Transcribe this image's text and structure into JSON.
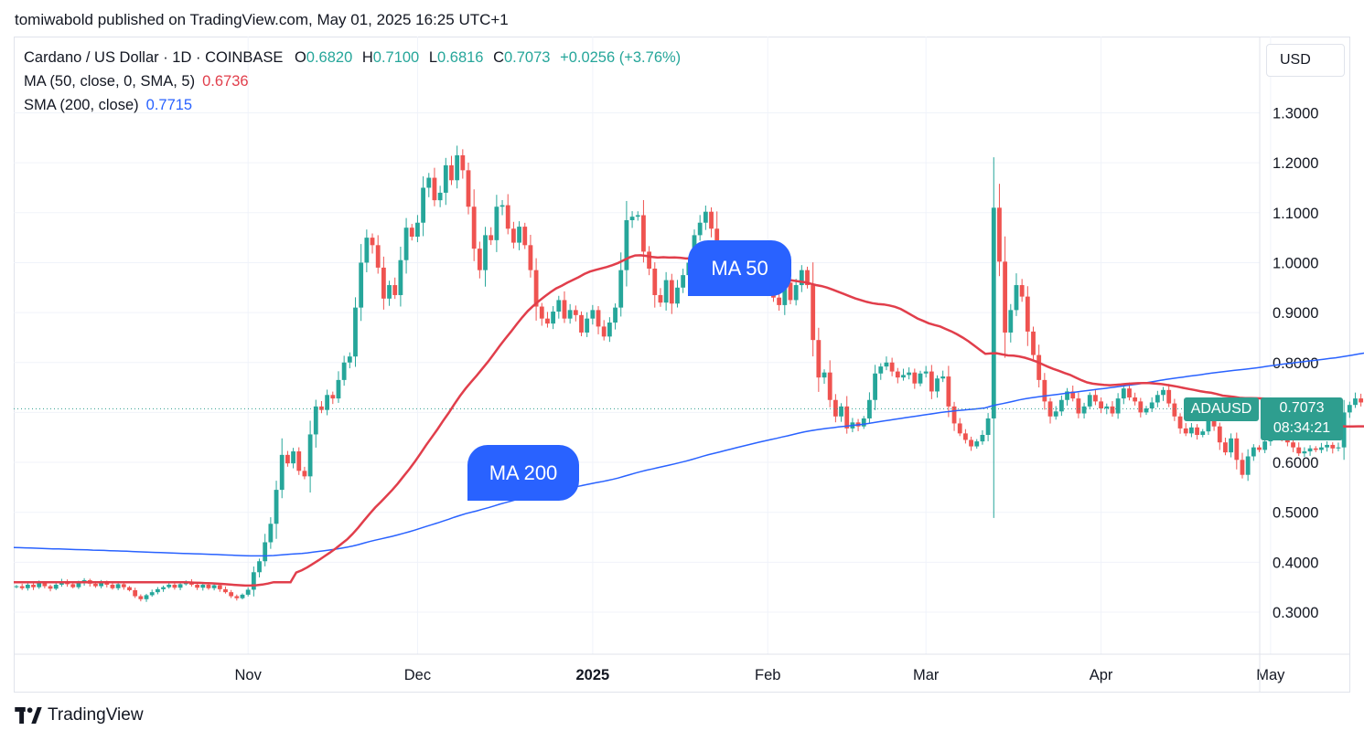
{
  "publish_line": "tomiwabold published on TradingView.com, May 01, 2025 16:25 UTC+1",
  "legend": {
    "symbol": "Cardano / US Dollar · 1D · COINBASE",
    "o_label": "O",
    "o_value": "0.6820",
    "h_label": "H",
    "h_value": "0.7100",
    "l_label": "L",
    "l_value": "0.6816",
    "c_label": "C",
    "c_value": "0.7073",
    "change": "+0.0256 (+3.76%)",
    "ma50_label": "MA (50, close, 0, SMA, 5)",
    "ma50_value": "0.6736",
    "sma200_label": "SMA (200, close)",
    "sma200_value": "0.7715"
  },
  "currency_button": "USD",
  "price_tag": {
    "symbol": "ADAUSD",
    "price": "0.7073",
    "countdown": "08:34:21"
  },
  "annotations": {
    "ma50": "MA 50",
    "ma200": "MA 200"
  },
  "footer": {
    "brand": "TradingView",
    "logo": "tradingview-logo-icon"
  },
  "colors": {
    "up": "#26a69a",
    "down": "#ef5350",
    "ma50": "#e13e4b",
    "sma200": "#2962ff",
    "callout": "#2962ff"
  },
  "chart_data": {
    "type": "candlestick",
    "interval": "1D",
    "y_ticks": [
      "0.3000",
      "0.4000",
      "0.5000",
      "0.6000",
      "0.7000",
      "0.8000",
      "0.9000",
      "1.0000",
      "1.1000",
      "1.2000",
      "1.3000"
    ],
    "x_ticks": [
      {
        "label": "Nov",
        "date": "2024-11-01",
        "bold": false
      },
      {
        "label": "Dec",
        "date": "2024-12-01",
        "bold": false
      },
      {
        "label": "2025",
        "date": "2025-01-01",
        "bold": true
      },
      {
        "label": "Feb",
        "date": "2025-02-01",
        "bold": false
      },
      {
        "label": "Mar",
        "date": "2025-03-01",
        "bold": false
      },
      {
        "label": "Apr",
        "date": "2025-04-01",
        "bold": false
      },
      {
        "label": "May",
        "date": "2025-05-01",
        "bold": false
      }
    ],
    "start_date": "2024-09-21",
    "last_close": 0.7073,
    "closes": [
      0.352,
      0.348,
      0.355,
      0.35,
      0.358,
      0.352,
      0.347,
      0.355,
      0.362,
      0.356,
      0.35,
      0.358,
      0.364,
      0.357,
      0.352,
      0.36,
      0.355,
      0.348,
      0.356,
      0.35,
      0.344,
      0.332,
      0.326,
      0.334,
      0.34,
      0.346,
      0.35,
      0.355,
      0.349,
      0.356,
      0.361,
      0.355,
      0.349,
      0.355,
      0.348,
      0.354,
      0.346,
      0.34,
      0.332,
      0.328,
      0.335,
      0.345,
      0.38,
      0.402,
      0.44,
      0.477,
      0.545,
      0.615,
      0.598,
      0.622,
      0.583,
      0.572,
      0.656,
      0.712,
      0.705,
      0.735,
      0.728,
      0.765,
      0.8,
      0.812,
      0.91,
      1.0,
      1.05,
      1.035,
      0.99,
      0.928,
      0.955,
      0.935,
      1.005,
      1.07,
      1.052,
      1.08,
      1.15,
      1.17,
      1.125,
      1.14,
      1.195,
      1.165,
      1.215,
      1.185,
      1.112,
      1.028,
      0.985,
      1.055,
      1.045,
      1.112,
      1.115,
      1.068,
      1.04,
      1.072,
      1.035,
      0.985,
      0.912,
      0.888,
      0.878,
      0.902,
      0.925,
      0.888,
      0.905,
      0.895,
      0.86,
      0.888,
      0.905,
      0.872,
      0.852,
      0.88,
      0.91,
      0.985,
      1.085,
      1.092,
      1.095,
      1.022,
      0.988,
      0.935,
      0.92,
      0.965,
      0.918,
      0.95,
      0.975,
      1.0,
      1.055,
      1.08,
      1.102,
      1.068,
      0.99,
      0.975,
      1.005,
      0.985,
      1.0,
      0.99,
      0.992,
      0.975,
      0.972,
      0.95,
      0.93,
      0.915,
      0.96,
      0.925,
      0.955,
      0.985,
      0.955,
      0.845,
      0.77,
      0.78,
      0.725,
      0.692,
      0.712,
      0.668,
      0.68,
      0.672,
      0.688,
      0.725,
      0.778,
      0.792,
      0.8,
      0.782,
      0.77,
      0.775,
      0.78,
      0.758,
      0.778,
      0.782,
      0.742,
      0.768,
      0.772,
      0.712,
      0.678,
      0.658,
      0.645,
      0.632,
      0.642,
      0.655,
      0.688,
      1.11,
      1.002,
      0.86,
      0.905,
      0.955,
      0.932,
      0.862,
      0.815,
      0.765,
      0.722,
      0.692,
      0.702,
      0.725,
      0.742,
      0.728,
      0.698,
      0.712,
      0.735,
      0.722,
      0.708,
      0.712,
      0.698,
      0.728,
      0.748,
      0.73,
      0.722,
      0.7,
      0.708,
      0.72,
      0.735,
      0.745,
      0.718,
      0.692,
      0.668,
      0.658,
      0.67,
      0.655,
      0.662,
      0.685,
      0.672,
      0.64,
      0.62,
      0.648,
      0.605,
      0.575,
      0.612,
      0.63,
      0.625,
      0.642,
      0.658,
      0.655,
      0.648,
      0.64,
      0.63,
      0.618,
      0.622,
      0.628,
      0.625,
      0.63,
      0.635,
      0.628,
      0.63,
      0.7,
      0.715,
      0.728,
      0.72,
      0.712,
      0.702,
      0.712,
      0.708,
      0.7,
      0.69,
      0.682,
      0.7073
    ]
  }
}
